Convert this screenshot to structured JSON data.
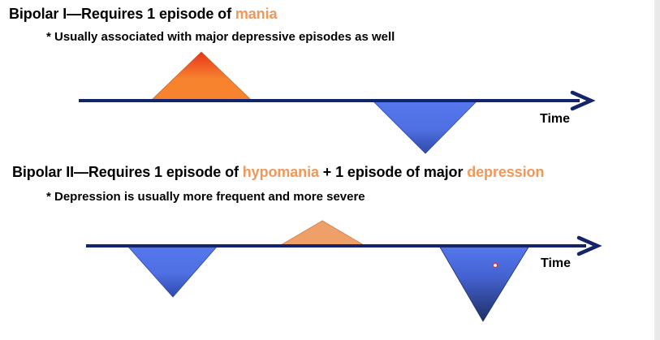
{
  "bipolar1": {
    "heading_prefix": "Bipolar I—Requires 1 episode of ",
    "heading_accent": "mania",
    "note": "* Usually associated with major depressive episodes as well",
    "time_label": "Time"
  },
  "bipolar2": {
    "heading_prefix": "Bipolar II—Requires 1 episode of ",
    "heading_accent1": "hypomania",
    "heading_middle": " + 1 episode of major ",
    "heading_accent2": "depression",
    "note": "* Depression is usually more frequent and more severe",
    "time_label": "Time"
  },
  "colors": {
    "axis": "#14246b",
    "accent_text": "#f0975a",
    "mania_top": "#e8341c",
    "mania_bottom": "#f7832e",
    "hypomania": "#eea068",
    "depression_top": "#5578ec",
    "depression_bottom": "#1f2f66"
  }
}
